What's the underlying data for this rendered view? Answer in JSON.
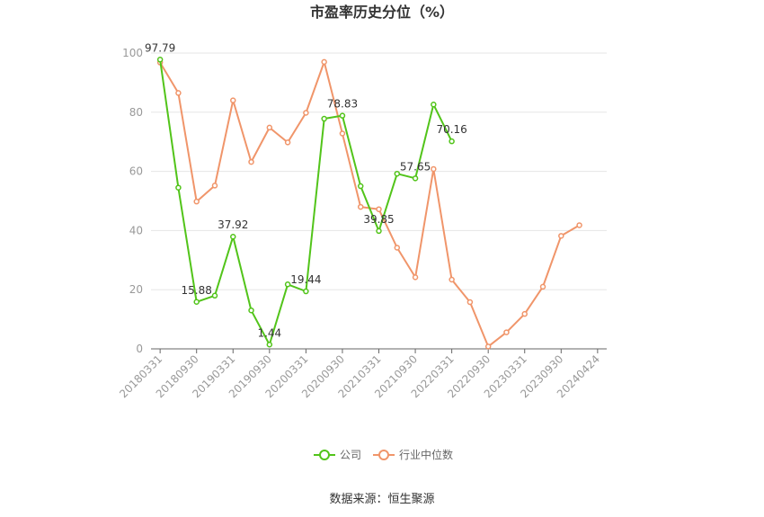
{
  "chart_data": {
    "type": "line",
    "title": "市盈率历史分位（%）",
    "source": "数据来源：恒生聚源",
    "xlabel": "",
    "ylabel": "",
    "ylim": [
      0,
      100
    ],
    "yticks": [
      0,
      20,
      40,
      60,
      80,
      100
    ],
    "grid": true,
    "legend_position": "bottom",
    "x_tick_labels": [
      "20180331",
      "20180930",
      "20190331",
      "20190930",
      "20200331",
      "20200930",
      "20210331",
      "20210930",
      "20220331",
      "20220930",
      "20230331",
      "20230930",
      "20240424"
    ],
    "x": [
      "20180331",
      "20180630",
      "20180930",
      "20181231",
      "20190331",
      "20190630",
      "20190930",
      "20191231",
      "20200331",
      "20200630",
      "20200930",
      "20201231",
      "20210331",
      "20210630",
      "20210930",
      "20211231",
      "20220331",
      "20220630",
      "20220930",
      "20221231",
      "20230331",
      "20230630",
      "20230930",
      "20231231",
      "20240424"
    ],
    "series": [
      {
        "name": "公司",
        "color": "#52c41a",
        "values": [
          97.79,
          54.5,
          15.88,
          18.0,
          37.92,
          13.0,
          1.44,
          21.8,
          19.44,
          77.8,
          78.83,
          55.0,
          39.85,
          59.2,
          57.65,
          82.6,
          70.16,
          null,
          null,
          null,
          null,
          null,
          null,
          null,
          null
        ],
        "labels": {
          "0": "97.79",
          "2": "15.88",
          "4": "37.92",
          "6": "1.44",
          "8": "19.44",
          "10": "78.83",
          "12": "39.85",
          "14": "57.65",
          "16": "70.16"
        }
      },
      {
        "name": "行业中位数",
        "color": "#f0956a",
        "values": [
          null,
          null,
          null,
          null,
          null,
          null,
          null,
          null,
          null,
          null,
          null,
          null,
          null,
          null,
          null,
          null,
          null,
          null,
          null,
          null,
          null,
          null,
          null,
          null,
          null
        ],
        "fallback_values": [
          96.8,
          86.5,
          49.8,
          55.2,
          84.0,
          63.2,
          74.8,
          69.8,
          79.8,
          97.0,
          72.8,
          48.0,
          47.2,
          34.2,
          24.2,
          60.8,
          23.4,
          15.8,
          0.8,
          5.6,
          11.8,
          21.0,
          38.2,
          41.8,
          null
        ]
      }
    ]
  }
}
